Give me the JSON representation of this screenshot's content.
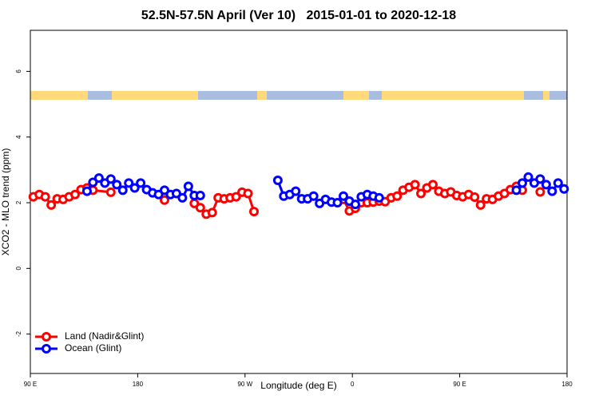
{
  "chart_data": {
    "type": "line",
    "title": "52.5N-57.5N April (Ver 10)   2015-01-01 to 2020-12-18",
    "x_label": "Longitude (deg E)",
    "y_label": "XCO2 - MLO trend (ppm)",
    "xlim": [
      90,
      540
    ],
    "ylim": [
      -3.2,
      7.25
    ],
    "xticks": [
      {
        "value": 90,
        "label": "90 E"
      },
      180,
      {
        "value": 270,
        "label": "90 W"
      },
      {
        "value": 360,
        "label": "0"
      },
      {
        "value": 450,
        "label": "90 E"
      },
      {
        "value": 540,
        "label": "180"
      }
    ],
    "yticks": [
      -2,
      0,
      2,
      4,
      6
    ],
    "legend": "bottom-left",
    "series": [
      {
        "name": "Land (Nadir&Glint)",
        "color": "#ff0000",
        "x": [
          92.5,
          97.5,
          102.5,
          107.5,
          112.5,
          117.5,
          122.5,
          127.5,
          132.5,
          137.5,
          142.5,
          157.5,
          null,
          202.5,
          null,
          227.5,
          232.5,
          237.5,
          242.5,
          247.5,
          252.5,
          257.5,
          262.5,
          267.5,
          272.5,
          277.5,
          null,
          352.5,
          357.5,
          362.5,
          367.5,
          372.5,
          377.5,
          382.5,
          387.5,
          392.5,
          397.5,
          402.5,
          407.5,
          412.5,
          417.5,
          422.5,
          427.5,
          432.5,
          437.5,
          442.5,
          447.5,
          452.5,
          457.5,
          462.5,
          467.5,
          472.5,
          477.5,
          482.5,
          487.5,
          492.5,
          497.5,
          502.5,
          null,
          517.5
        ],
        "values": [
          2.18,
          2.25,
          2.18,
          1.93,
          2.12,
          2.1,
          2.18,
          2.25,
          2.4,
          2.45,
          2.38,
          2.32,
          null,
          2.08,
          null,
          1.98,
          1.85,
          1.65,
          1.7,
          2.15,
          2.12,
          2.15,
          2.18,
          2.32,
          2.28,
          1.73,
          null,
          2.1,
          1.75,
          1.83,
          2.0,
          2.0,
          2.02,
          2.05,
          2.03,
          2.15,
          2.2,
          2.38,
          2.47,
          2.55,
          2.28,
          2.45,
          2.55,
          2.35,
          2.28,
          2.33,
          2.22,
          2.18,
          2.25,
          2.17,
          1.93,
          2.12,
          2.1,
          2.2,
          2.28,
          2.4,
          2.5,
          2.38,
          null,
          2.33
        ]
      },
      {
        "name": "Ocean (Glint)",
        "color": "#0000ff",
        "x": [
          137.5,
          142.5,
          147.5,
          152.5,
          157.5,
          162.5,
          167.5,
          172.5,
          177.5,
          182.5,
          187.5,
          192.5,
          197.5,
          202.5,
          207.5,
          212.5,
          217.5,
          222.5,
          227.5,
          232.5,
          null,
          297.5,
          302.5,
          307.5,
          312.5,
          317.5,
          322.5,
          327.5,
          332.5,
          337.5,
          342.5,
          347.5,
          352.5,
          357.5,
          362.5,
          367.5,
          372.5,
          377.5,
          382.5,
          null,
          497.5,
          502.5,
          507.5,
          512.5,
          517.5,
          522.5,
          527.5,
          532.5,
          537.5
        ],
        "values": [
          2.35,
          2.62,
          2.75,
          2.6,
          2.72,
          2.55,
          2.38,
          2.6,
          2.45,
          2.6,
          2.4,
          2.3,
          2.25,
          2.38,
          2.25,
          2.28,
          2.15,
          2.5,
          2.22,
          2.22,
          null,
          2.68,
          2.2,
          2.25,
          2.35,
          2.12,
          2.12,
          2.2,
          1.98,
          2.1,
          2.02,
          2.0,
          2.2,
          2.05,
          1.95,
          2.18,
          2.25,
          2.2,
          2.15,
          null,
          2.38,
          2.6,
          2.78,
          2.6,
          2.72,
          2.55,
          2.35,
          2.6,
          2.42
        ]
      }
    ]
  }
}
